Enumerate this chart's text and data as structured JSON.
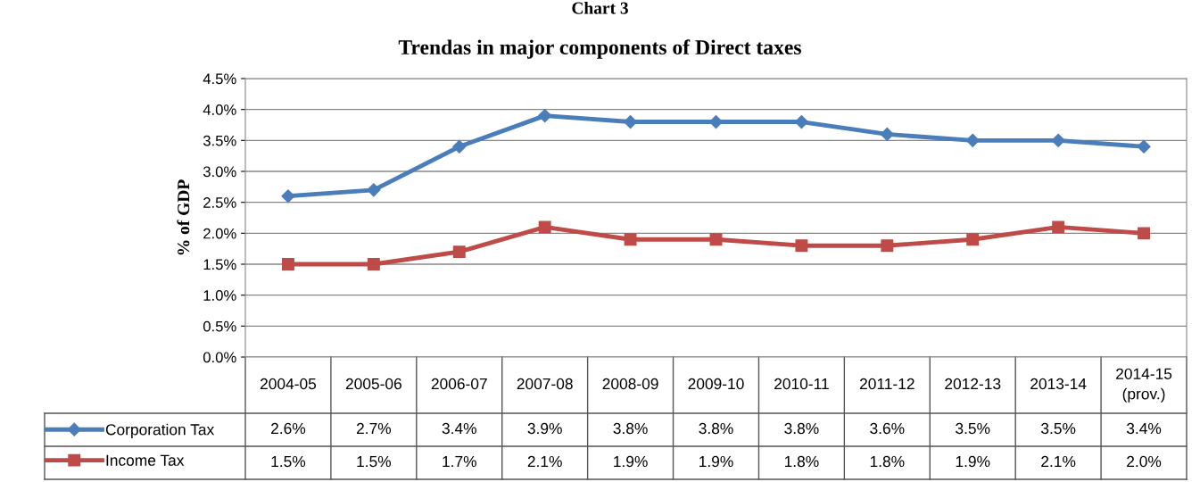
{
  "chart_data": {
    "type": "line",
    "title": "Trendas in major components of Direct taxes",
    "ylabel": "% of GDP",
    "annotations": [
      "Chart 3"
    ],
    "categories": [
      "2004-05",
      "2005-06",
      "2006-07",
      "2007-08",
      "2008-09",
      "2009-10",
      "2010-11",
      "2011-12",
      "2012-13",
      "2013-14",
      "2014-15\n(prov.)"
    ],
    "series": [
      {
        "name": "Corporation Tax",
        "color": "#4a7ebb",
        "marker": "diamond",
        "values": [
          2.6,
          2.7,
          3.4,
          3.9,
          3.8,
          3.8,
          3.8,
          3.6,
          3.5,
          3.5,
          3.4
        ],
        "value_labels": [
          "2.6%",
          "2.7%",
          "3.4%",
          "3.9%",
          "3.8%",
          "3.8%",
          "3.8%",
          "3.6%",
          "3.5%",
          "3.5%",
          "3.4%"
        ]
      },
      {
        "name": "Income Tax",
        "color": "#be4b48",
        "marker": "square",
        "values": [
          1.5,
          1.5,
          1.7,
          2.1,
          1.9,
          1.9,
          1.8,
          1.8,
          1.9,
          2.1,
          2.0
        ],
        "value_labels": [
          "1.5%",
          "1.5%",
          "1.7%",
          "2.1%",
          "1.9%",
          "1.9%",
          "1.8%",
          "1.8%",
          "1.9%",
          "2.1%",
          "2.0%"
        ]
      }
    ],
    "ylim": [
      0,
      4.5
    ],
    "yticks": [
      {
        "value": 0,
        "label": "0.0%"
      },
      {
        "value": 0.5,
        "label": "0.5%"
      },
      {
        "value": 1,
        "label": "1.0%"
      },
      {
        "value": 1.5,
        "label": "1.5%"
      },
      {
        "value": 2,
        "label": "2.0%"
      },
      {
        "value": 2.5,
        "label": "2.5%"
      },
      {
        "value": 3,
        "label": "3.0%"
      },
      {
        "value": 3.5,
        "label": "3.5%"
      },
      {
        "value": 4,
        "label": "4.0%"
      },
      {
        "value": 4.5,
        "label": "4.5%"
      }
    ],
    "grid": "y",
    "line_style": "solid",
    "legend": "bottom left"
  }
}
